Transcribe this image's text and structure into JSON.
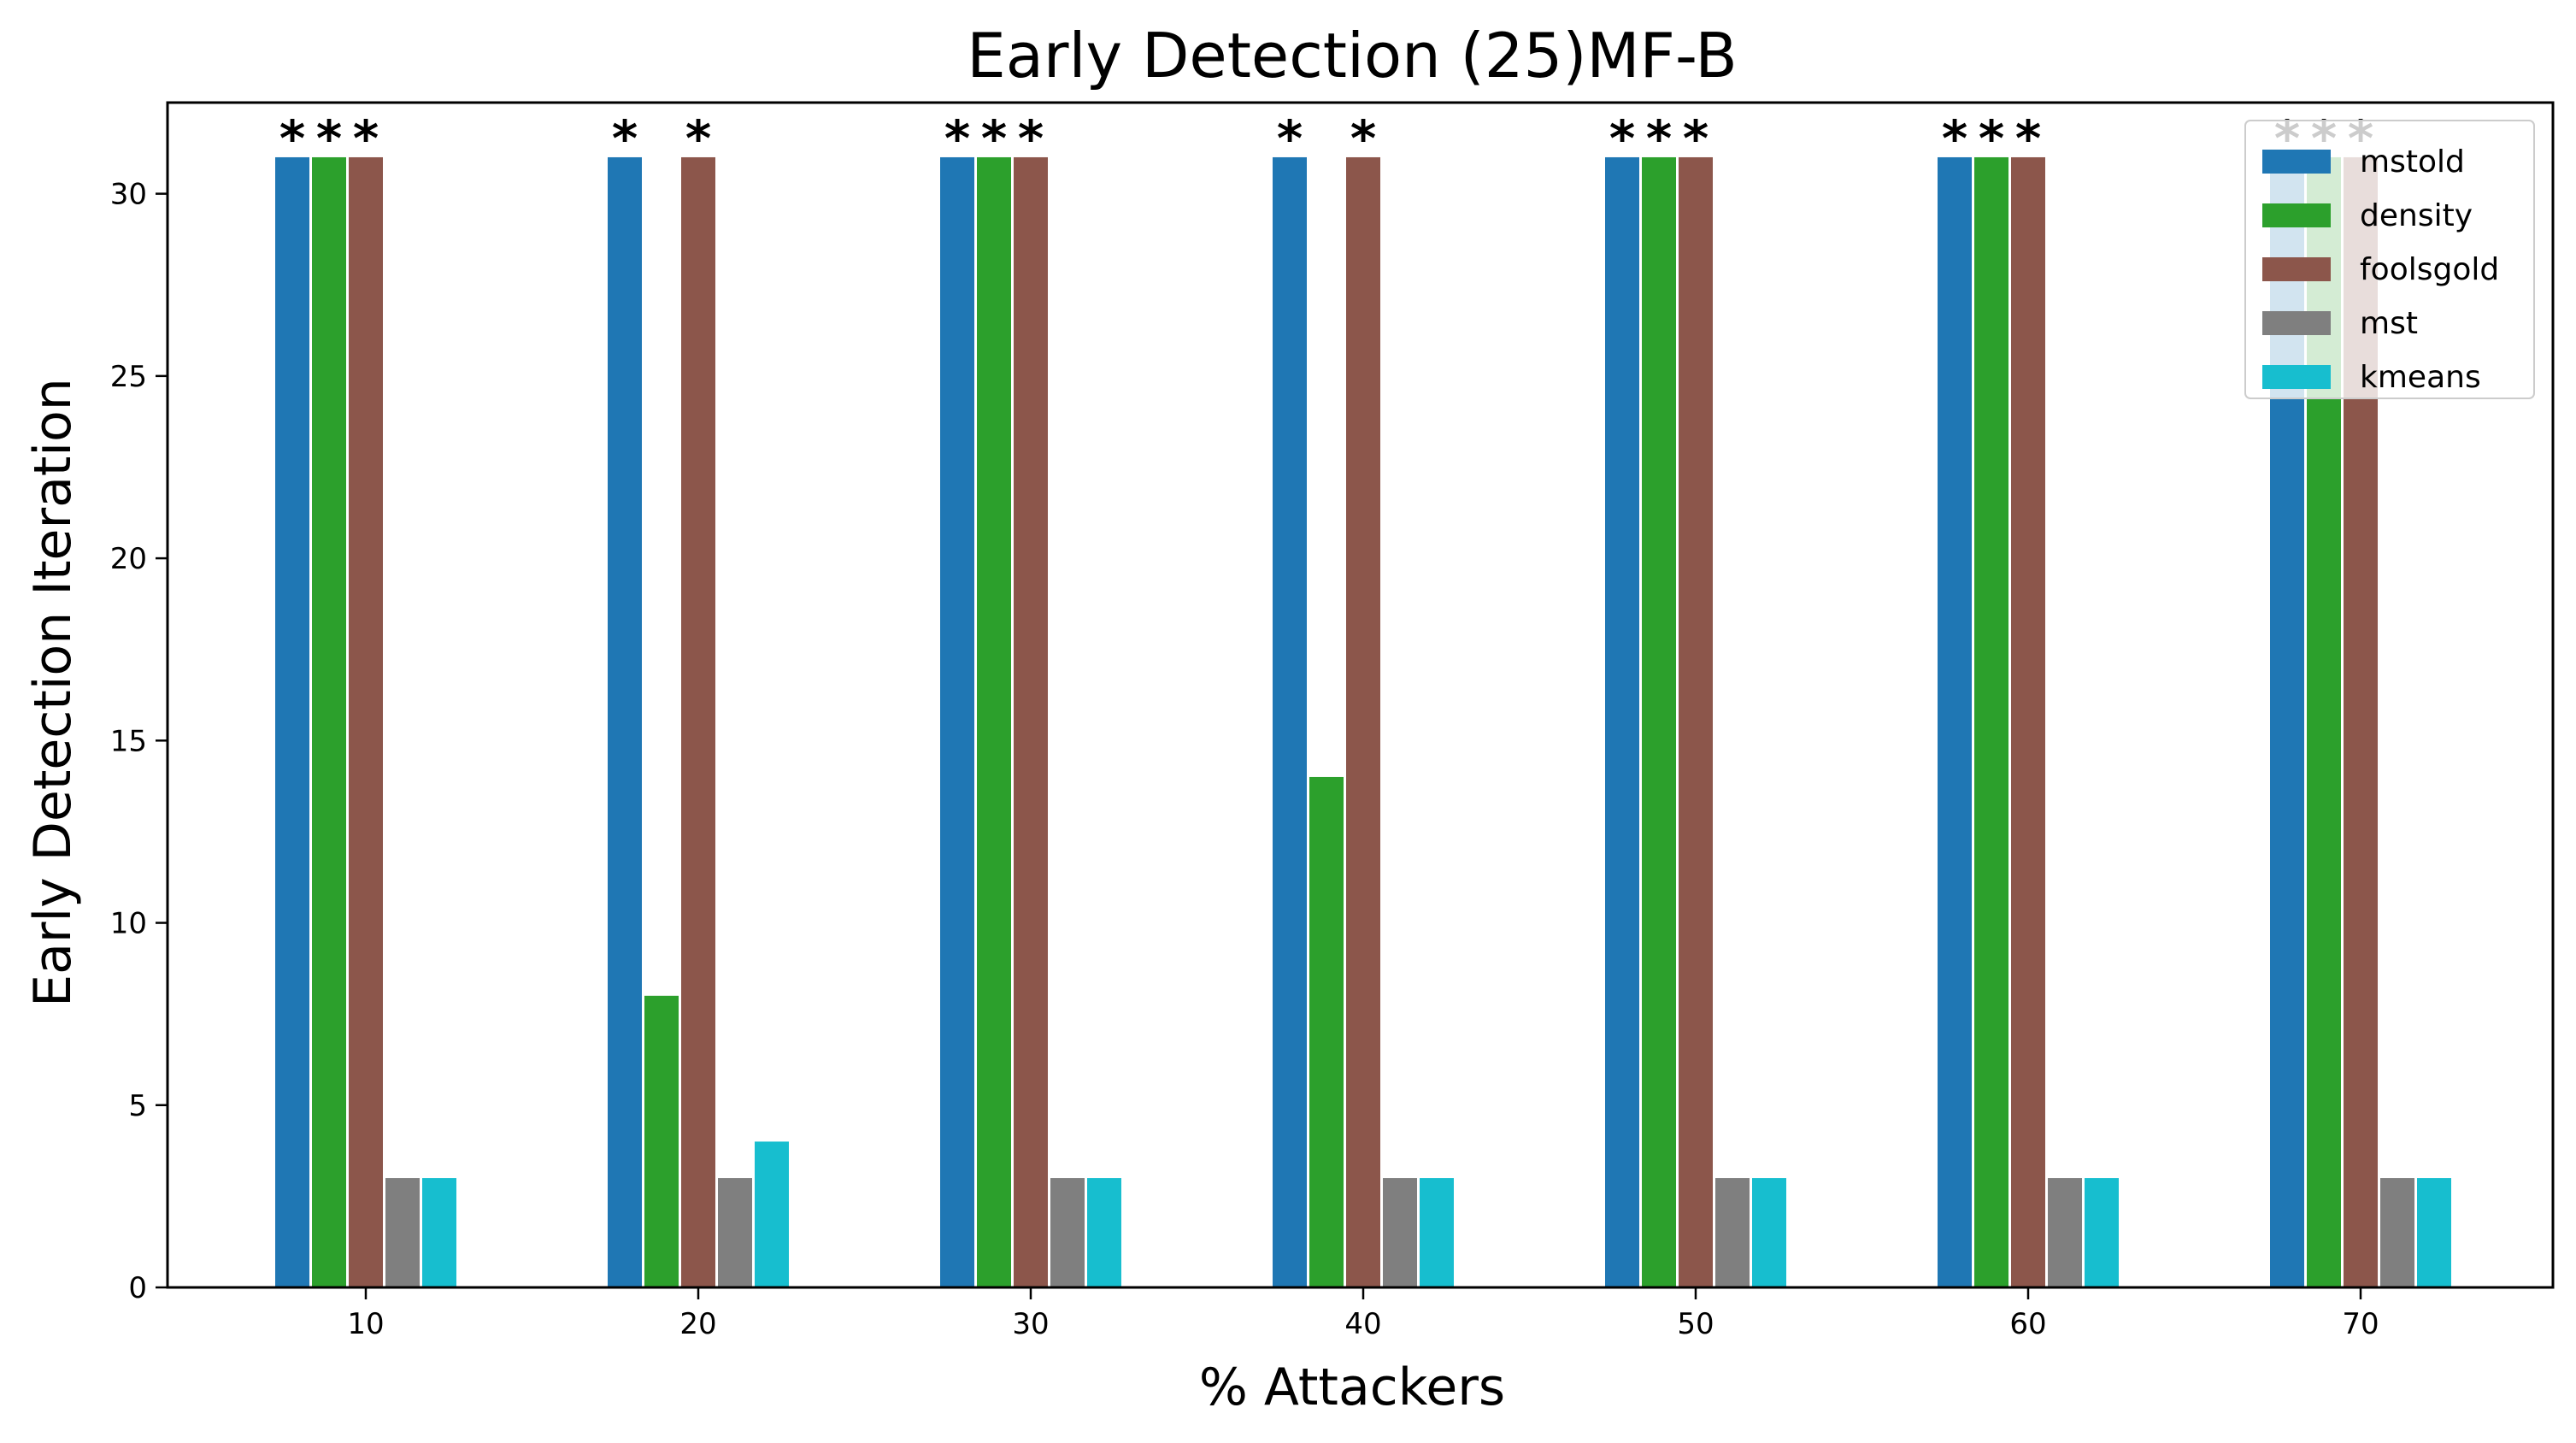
{
  "chart_data": {
    "type": "bar",
    "title": "Early Detection (25)MF-B",
    "xlabel": "% Attackers",
    "ylabel": "Early Detection Iteration",
    "categories": [
      "10",
      "20",
      "30",
      "40",
      "50",
      "60",
      "70"
    ],
    "ylim": [
      0,
      32.5
    ],
    "yticks": [
      0,
      5,
      10,
      15,
      20,
      25,
      30
    ],
    "grid": false,
    "legend_position": "top-right",
    "series": [
      {
        "name": "mstold",
        "color": "#1f77b4",
        "values": [
          31,
          31,
          31,
          31,
          31,
          31,
          31
        ]
      },
      {
        "name": "density",
        "color": "#2ca02c",
        "values": [
          31,
          8,
          31,
          14,
          31,
          31,
          31
        ]
      },
      {
        "name": "foolsgold",
        "color": "#8c564b",
        "values": [
          31,
          31,
          31,
          31,
          31,
          31,
          31
        ]
      },
      {
        "name": "mst",
        "color": "#7f7f7f",
        "values": [
          3,
          3,
          3,
          3,
          3,
          3,
          3
        ]
      },
      {
        "name": "kmeans",
        "color": "#17becf",
        "values": [
          3,
          4,
          3,
          3,
          3,
          3,
          3
        ]
      }
    ],
    "annotations": [
      {
        "category": "10",
        "series": "mstold",
        "text": "*"
      },
      {
        "category": "10",
        "series": "density",
        "text": "*"
      },
      {
        "category": "10",
        "series": "foolsgold",
        "text": "*"
      },
      {
        "category": "20",
        "series": "mstold",
        "text": "*"
      },
      {
        "category": "20",
        "series": "foolsgold",
        "text": "*"
      },
      {
        "category": "30",
        "series": "mstold",
        "text": "*"
      },
      {
        "category": "30",
        "series": "density",
        "text": "*"
      },
      {
        "category": "30",
        "series": "foolsgold",
        "text": "*"
      },
      {
        "category": "40",
        "series": "mstold",
        "text": "*"
      },
      {
        "category": "40",
        "series": "foolsgold",
        "text": "*"
      },
      {
        "category": "50",
        "series": "mstold",
        "text": "*"
      },
      {
        "category": "50",
        "series": "density",
        "text": "*"
      },
      {
        "category": "50",
        "series": "foolsgold",
        "text": "*"
      },
      {
        "category": "60",
        "series": "mstold",
        "text": "*"
      },
      {
        "category": "60",
        "series": "density",
        "text": "*"
      },
      {
        "category": "60",
        "series": "foolsgold",
        "text": "*"
      },
      {
        "category": "70",
        "series": "mstold",
        "text": "*"
      },
      {
        "category": "70",
        "series": "density",
        "text": "*"
      },
      {
        "category": "70",
        "series": "foolsgold",
        "text": "*"
      }
    ]
  }
}
